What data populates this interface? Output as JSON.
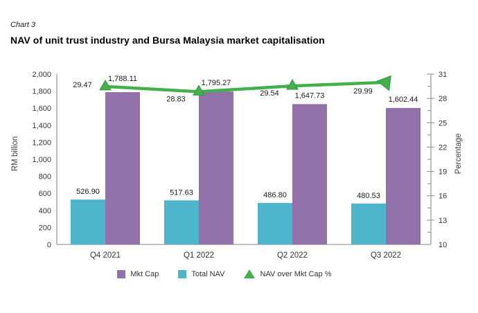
{
  "header": {
    "kicker": "Chart 3",
    "title": "NAV of unit trust industry and Bursa Malaysia market capitalisation"
  },
  "chart_data": {
    "type": "bar",
    "subtype": "grouped-bar-with-line-overlay",
    "title": "NAV of unit trust industry and Bursa Malaysia market capitalisation",
    "categories": [
      "Q4 2021",
      "Q1 2022",
      "Q2 2022",
      "Q3 2022"
    ],
    "series": [
      {
        "name": "Mkt Cap",
        "type": "bar",
        "axis": "left",
        "color": "#9271aa",
        "values": [
          1788.11,
          1795.27,
          1647.73,
          1602.44
        ],
        "labels": [
          "1,788.11",
          "1,795.27",
          "1,647.73",
          "1,602.44"
        ]
      },
      {
        "name": "Total NAV",
        "type": "bar",
        "axis": "left",
        "color": "#4db6cd",
        "values": [
          526.9,
          517.63,
          486.8,
          480.53
        ],
        "labels": [
          "526.90",
          "517.63",
          "486.80",
          "480.53"
        ]
      },
      {
        "name": "NAV over Mkt Cap %",
        "type": "line",
        "axis": "right",
        "color": "#44b04c",
        "marker": "triangle-up",
        "values": [
          29.47,
          28.83,
          29.54,
          29.99
        ],
        "labels": [
          "29.47",
          "28.83",
          "29.54",
          "29.99"
        ]
      }
    ],
    "left_axis": {
      "label": "RM billion",
      "min": 0,
      "max": 2000,
      "step": 200,
      "tick_labels": [
        "0",
        "200",
        "400",
        "600",
        "800",
        "1,000",
        "1,200",
        "1,400",
        "1,600",
        "1,800",
        "2,000"
      ]
    },
    "right_axis": {
      "label": "Percentage",
      "min": 10,
      "max": 31,
      "step": 3,
      "tick_labels": [
        "10",
        "13",
        "16",
        "19",
        "22",
        "25",
        "28",
        "31"
      ]
    },
    "legend": {
      "position": "bottom",
      "items": [
        "Mkt Cap",
        "Total NAV",
        "NAV over Mkt Cap %"
      ]
    },
    "grid": false,
    "colors": {
      "axis_line": "#9b9b9b",
      "tick_text": "#333333",
      "value_label_text": "#1a1a1a",
      "line_marker_edge": "#2f9a3f"
    }
  }
}
